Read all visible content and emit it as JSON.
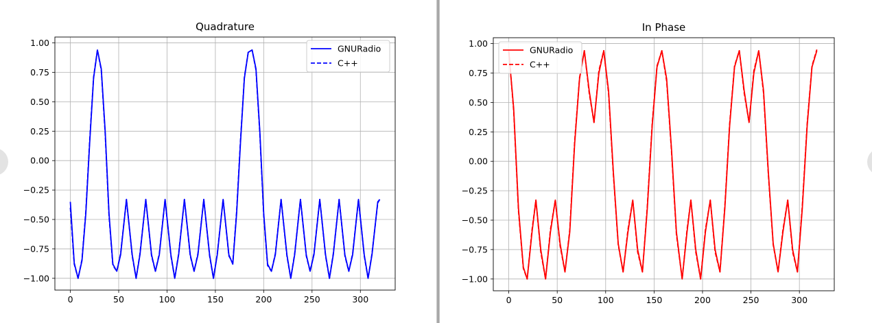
{
  "chart_data": [
    {
      "type": "line",
      "title": "Quadrature",
      "xlabel": "",
      "ylabel": "",
      "xlim": [
        -16,
        336
      ],
      "ylim": [
        -1.1,
        1.05
      ],
      "xticks": [
        0,
        50,
        100,
        150,
        200,
        250,
        300
      ],
      "yticks": [
        1.0,
        0.75,
        0.5,
        0.25,
        0.0,
        -0.25,
        -0.5,
        -0.75,
        -1.0
      ],
      "ytick_labels": [
        "1.00",
        "0.75",
        "0.50",
        "0.25",
        "0.00",
        "−0.25",
        "−0.50",
        "−0.75",
        "−1.00"
      ],
      "grid": true,
      "legend_position": "upper right",
      "color": "#0000ff",
      "series": [
        {
          "name": "GNURadio",
          "style": "solid",
          "x": [
            0,
            4,
            8,
            12,
            16,
            20,
            24,
            28,
            32,
            36,
            40,
            44,
            48,
            52,
            58,
            64,
            68,
            72,
            78,
            84,
            88,
            92,
            98,
            104,
            108,
            112,
            118,
            124,
            128,
            132,
            138,
            144,
            148,
            152,
            158,
            164,
            168,
            172,
            176,
            180,
            184,
            188,
            192,
            196,
            200,
            204,
            208,
            212,
            218,
            224,
            228,
            232,
            238,
            244,
            248,
            252,
            258,
            264,
            268,
            272,
            278,
            284,
            288,
            292,
            298,
            304,
            308,
            312,
            318,
            320
          ],
          "y": [
            -0.35,
            -0.87,
            -1.0,
            -0.85,
            -0.45,
            0.15,
            0.7,
            0.94,
            0.78,
            0.25,
            -0.45,
            -0.88,
            -0.94,
            -0.8,
            -0.33,
            -0.8,
            -1.0,
            -0.8,
            -0.33,
            -0.8,
            -0.94,
            -0.8,
            -0.33,
            -0.8,
            -1.0,
            -0.8,
            -0.33,
            -0.8,
            -0.94,
            -0.8,
            -0.33,
            -0.8,
            -1.0,
            -0.8,
            -0.33,
            -0.8,
            -0.88,
            -0.45,
            0.15,
            0.7,
            0.92,
            0.94,
            0.78,
            0.25,
            -0.45,
            -0.88,
            -0.94,
            -0.8,
            -0.33,
            -0.8,
            -1.0,
            -0.8,
            -0.33,
            -0.8,
            -0.94,
            -0.8,
            -0.33,
            -0.8,
            -1.0,
            -0.8,
            -0.33,
            -0.8,
            -0.94,
            -0.8,
            -0.33,
            -0.8,
            -1.0,
            -0.8,
            -0.35,
            -0.33
          ]
        },
        {
          "name": "C++",
          "style": "dashed",
          "x": [
            0,
            4,
            8,
            12,
            16,
            20,
            24,
            28,
            32,
            36,
            40,
            44,
            48,
            52,
            58,
            64,
            68,
            72,
            78,
            84,
            88,
            92,
            98,
            104,
            108,
            112,
            118,
            124,
            128,
            132,
            138,
            144,
            148,
            152,
            158,
            164,
            168,
            172,
            176,
            180,
            184,
            188,
            192,
            196,
            200,
            204,
            208,
            212,
            218,
            224,
            228,
            232,
            238,
            244,
            248,
            252,
            258,
            264,
            268,
            272,
            278,
            284,
            288,
            292,
            298,
            304,
            308,
            312,
            318,
            320
          ],
          "y": [
            -0.4,
            -0.88,
            -1.0,
            -0.84,
            -0.43,
            0.17,
            0.71,
            0.94,
            0.77,
            0.23,
            -0.47,
            -0.89,
            -0.94,
            -0.79,
            -0.33,
            -0.81,
            -1.0,
            -0.79,
            -0.33,
            -0.81,
            -0.94,
            -0.79,
            -0.33,
            -0.81,
            -1.0,
            -0.79,
            -0.33,
            -0.81,
            -0.94,
            -0.79,
            -0.33,
            -0.81,
            -1.0,
            -0.79,
            -0.33,
            -0.81,
            -0.87,
            -0.43,
            0.17,
            0.71,
            0.92,
            0.94,
            0.77,
            0.23,
            -0.47,
            -0.89,
            -0.94,
            -0.79,
            -0.33,
            -0.81,
            -1.0,
            -0.79,
            -0.33,
            -0.81,
            -0.94,
            -0.79,
            -0.33,
            -0.81,
            -1.0,
            -0.79,
            -0.33,
            -0.81,
            -0.94,
            -0.79,
            -0.33,
            -0.81,
            -1.0,
            -0.79,
            -0.36,
            -0.33
          ]
        }
      ]
    },
    {
      "type": "line",
      "title": "In Phase",
      "xlabel": "",
      "ylabel": "",
      "xlim": [
        -16,
        336
      ],
      "ylim": [
        -1.1,
        1.05
      ],
      "xticks": [
        0,
        50,
        100,
        150,
        200,
        250,
        300
      ],
      "yticks": [
        1.0,
        0.75,
        0.5,
        0.25,
        0.0,
        -0.25,
        -0.5,
        -0.75,
        -1.0
      ],
      "ytick_labels": [
        "1.00",
        "0.75",
        "0.50",
        "0.25",
        "0.00",
        "−0.25",
        "−0.50",
        "−0.75",
        "−1.00"
      ],
      "grid": true,
      "legend_position": "upper left",
      "color": "#ff0000",
      "series": [
        {
          "name": "GNURadio",
          "style": "solid",
          "x": [
            0,
            5,
            10,
            15,
            19,
            24,
            28,
            33,
            38,
            43,
            48,
            53,
            58,
            63,
            68,
            73,
            78,
            83,
            88,
            93,
            98,
            103,
            108,
            113,
            118,
            123,
            128,
            133,
            138,
            143,
            148,
            153,
            158,
            163,
            168,
            173,
            179,
            184,
            188,
            193,
            198,
            203,
            208,
            213,
            218,
            223,
            228,
            233,
            238,
            243,
            248,
            253,
            258,
            263,
            268,
            273,
            278,
            283,
            288,
            293,
            298,
            303,
            308,
            313,
            318
          ],
          "y": [
            0.93,
            0.45,
            -0.4,
            -0.9,
            -1.0,
            -0.6,
            -0.33,
            -0.75,
            -1.0,
            -0.6,
            -0.33,
            -0.7,
            -0.94,
            -0.6,
            0.15,
            0.7,
            0.94,
            0.6,
            0.33,
            0.75,
            0.94,
            0.6,
            -0.1,
            -0.7,
            -0.94,
            -0.6,
            -0.33,
            -0.75,
            -0.94,
            -0.4,
            0.3,
            0.8,
            0.94,
            0.7,
            0.1,
            -0.6,
            -1.0,
            -0.6,
            -0.33,
            -0.75,
            -1.0,
            -0.6,
            -0.33,
            -0.75,
            -0.94,
            -0.4,
            0.3,
            0.8,
            0.94,
            0.6,
            0.33,
            0.75,
            0.94,
            0.6,
            -0.1,
            -0.7,
            -0.94,
            -0.6,
            -0.33,
            -0.75,
            -0.94,
            -0.4,
            0.3,
            0.8,
            0.94
          ]
        },
        {
          "name": "C++",
          "style": "dashed",
          "x": [
            0,
            5,
            10,
            15,
            19,
            24,
            28,
            33,
            38,
            43,
            48,
            53,
            58,
            63,
            68,
            73,
            78,
            83,
            88,
            93,
            98,
            103,
            108,
            113,
            118,
            123,
            128,
            133,
            138,
            143,
            148,
            153,
            158,
            163,
            168,
            173,
            179,
            184,
            188,
            193,
            198,
            203,
            208,
            213,
            218,
            223,
            228,
            233,
            238,
            243,
            248,
            253,
            258,
            263,
            268,
            273,
            278,
            283,
            288,
            293,
            298,
            303,
            308,
            313,
            318
          ],
          "y": [
            0.94,
            0.43,
            -0.42,
            -0.91,
            -1.0,
            -0.58,
            -0.33,
            -0.77,
            -1.0,
            -0.58,
            -0.33,
            -0.72,
            -0.94,
            -0.58,
            0.17,
            0.71,
            0.94,
            0.58,
            0.33,
            0.77,
            0.94,
            0.58,
            -0.12,
            -0.71,
            -0.94,
            -0.58,
            -0.33,
            -0.77,
            -0.94,
            -0.38,
            0.32,
            0.81,
            0.94,
            0.68,
            0.08,
            -0.62,
            -1.0,
            -0.58,
            -0.33,
            -0.77,
            -1.0,
            -0.58,
            -0.33,
            -0.77,
            -0.94,
            -0.38,
            0.32,
            0.81,
            0.94,
            0.58,
            0.33,
            0.77,
            0.94,
            0.58,
            -0.12,
            -0.71,
            -0.94,
            -0.58,
            -0.33,
            -0.77,
            -0.94,
            -0.38,
            0.32,
            0.81,
            0.95
          ]
        }
      ]
    }
  ]
}
